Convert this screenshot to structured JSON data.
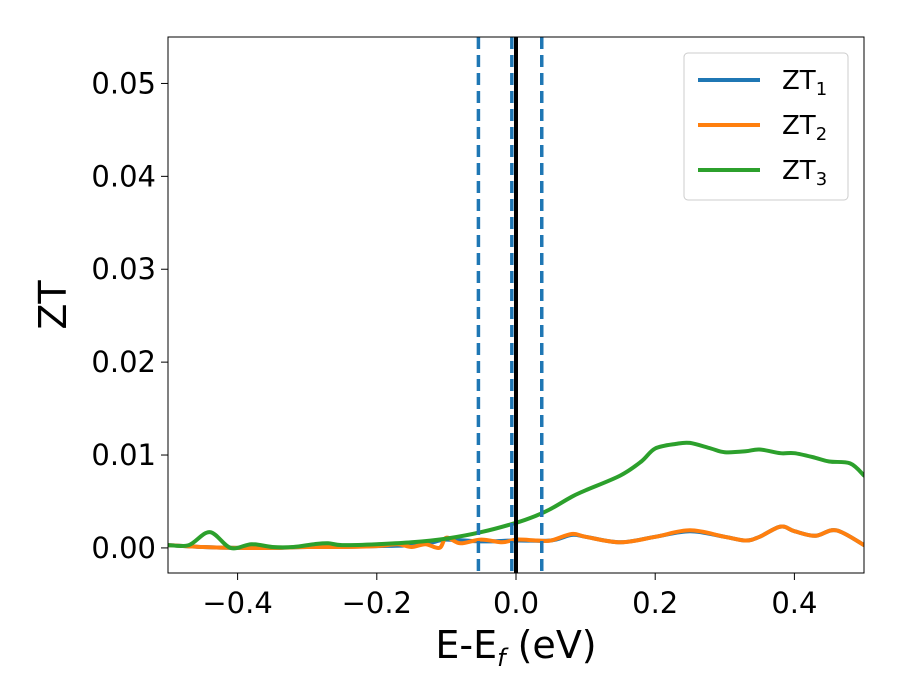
{
  "chart_data": {
    "type": "line",
    "title": "",
    "xlabel": {
      "main": "E-E",
      "sub": "f",
      "suffix": " (eV)"
    },
    "ylabel": "ZT",
    "xlim": [
      -0.5,
      0.5
    ],
    "ylim": [
      -0.0027,
      0.055
    ],
    "xticks": [
      -0.4,
      -0.2,
      0.0,
      0.2,
      0.4
    ],
    "xtick_labels": [
      "−0.4",
      "−0.2",
      "0.0",
      "0.2",
      "0.4"
    ],
    "yticks": [
      0.0,
      0.01,
      0.02,
      0.03,
      0.04,
      0.05
    ],
    "ytick_labels": [
      "0.00",
      "0.01",
      "0.02",
      "0.03",
      "0.04",
      "0.05"
    ],
    "grid": false,
    "legend_position": "top-right",
    "series": [
      {
        "name": "ZT",
        "sub": "1",
        "color": "#1f77b4",
        "x": [
          -0.5,
          -0.45,
          -0.4,
          -0.35,
          -0.3,
          -0.25,
          -0.2,
          -0.15,
          -0.12,
          -0.1,
          -0.05,
          0.0,
          0.05,
          0.08,
          0.1,
          0.15,
          0.2,
          0.25,
          0.3,
          0.33,
          0.35,
          0.38,
          0.4,
          0.43,
          0.46,
          0.5
        ],
        "y": [
          0.0003,
          0.0001,
          0.0,
          0.0,
          0.0001,
          0.0001,
          0.0002,
          0.0003,
          0.0006,
          0.0009,
          0.0007,
          0.0008,
          0.0008,
          0.0014,
          0.0012,
          0.0006,
          0.0012,
          0.0018,
          0.0012,
          0.0008,
          0.0012,
          0.0023,
          0.0018,
          0.0013,
          0.0019,
          0.0003
        ]
      },
      {
        "name": "ZT",
        "sub": "2",
        "color": "#ff7f0e",
        "x": [
          -0.5,
          -0.45,
          -0.4,
          -0.35,
          -0.3,
          -0.25,
          -0.2,
          -0.17,
          -0.15,
          -0.13,
          -0.11,
          -0.1,
          -0.08,
          -0.05,
          -0.02,
          0.0,
          0.03,
          0.05,
          0.08,
          0.1,
          0.15,
          0.2,
          0.25,
          0.3,
          0.33,
          0.35,
          0.38,
          0.4,
          0.43,
          0.46,
          0.5
        ],
        "y": [
          0.0003,
          0.0001,
          0.0,
          0.0,
          0.0001,
          0.0001,
          0.0002,
          0.0004,
          0.0001,
          0.0004,
          0.0,
          0.0011,
          0.0005,
          0.0009,
          0.0006,
          0.0009,
          0.0008,
          0.0008,
          0.0015,
          0.0012,
          0.0006,
          0.0012,
          0.0019,
          0.0012,
          0.0008,
          0.0012,
          0.0023,
          0.0018,
          0.0013,
          0.0019,
          0.0003
        ]
      },
      {
        "name": "ZT",
        "sub": "3",
        "color": "#2ca02c",
        "x": [
          -0.5,
          -0.47,
          -0.44,
          -0.41,
          -0.38,
          -0.35,
          -0.32,
          -0.29,
          -0.27,
          -0.25,
          -0.2,
          -0.15,
          -0.1,
          -0.05,
          0.0,
          0.03,
          0.05,
          0.08,
          0.1,
          0.15,
          0.18,
          0.2,
          0.23,
          0.25,
          0.28,
          0.3,
          0.33,
          0.35,
          0.38,
          0.4,
          0.43,
          0.45,
          0.48,
          0.5
        ],
        "y": [
          0.0003,
          0.0003,
          0.0017,
          0.0,
          0.0004,
          0.0001,
          0.0001,
          0.0004,
          0.0005,
          0.0003,
          0.0004,
          0.0006,
          0.001,
          0.0017,
          0.0027,
          0.0035,
          0.0042,
          0.0055,
          0.0062,
          0.0078,
          0.0093,
          0.0107,
          0.0112,
          0.0113,
          0.0107,
          0.0103,
          0.0104,
          0.0106,
          0.0102,
          0.0102,
          0.0097,
          0.0093,
          0.0091,
          0.0078
        ]
      }
    ],
    "vlines": [
      {
        "x": 0.0,
        "color": "#000000",
        "style": "solid"
      },
      {
        "x": -0.054,
        "color": "#1f77b4",
        "style": "dashed"
      },
      {
        "x": -0.006,
        "color": "#1f77b4",
        "style": "dashed"
      },
      {
        "x": 0.037,
        "color": "#1f77b4",
        "style": "dashed"
      }
    ]
  }
}
